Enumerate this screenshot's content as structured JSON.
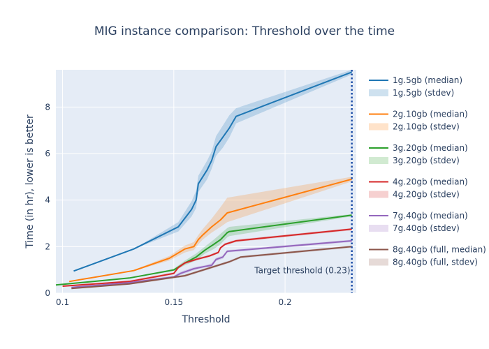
{
  "chart_data": {
    "type": "line",
    "title": "MIG instance comparison: Threshold over the time",
    "xlabel": "Threshold",
    "ylabel": "Time (in hr), lower is better",
    "xlim": [
      0.097,
      0.232
    ],
    "ylim": [
      0,
      9.6
    ],
    "x_ticks": [
      0.1,
      0.15,
      0.2
    ],
    "x_tick_labels": [
      "0.1",
      "0.15",
      "0.2"
    ],
    "y_ticks": [
      0,
      2,
      4,
      6,
      8
    ],
    "y_tick_labels": [
      "0",
      "2",
      "4",
      "6",
      "8"
    ],
    "grid": true,
    "legend_position": "right",
    "plot_background": "#e5ecf6",
    "annotation": {
      "text": "Target threshold (0.23)",
      "x": 0.23
    },
    "series": [
      {
        "name": "1g.5gb (median)",
        "band_name": "1g.5gb (stdev)",
        "color": "#1f77b4",
        "x": [
          0.105,
          0.132,
          0.152,
          0.158,
          0.16,
          0.161,
          0.165,
          0.167,
          0.169,
          0.172,
          0.175,
          0.178,
          0.23
        ],
        "y": [
          0.95,
          1.9,
          2.85,
          3.6,
          4.0,
          4.7,
          5.3,
          5.7,
          6.3,
          6.7,
          7.1,
          7.6,
          9.5
        ],
        "upper": [
          0.95,
          1.9,
          3.05,
          3.95,
          4.4,
          5.05,
          5.7,
          6.1,
          6.75,
          7.2,
          7.65,
          7.95,
          9.6
        ],
        "lower": [
          0.95,
          1.9,
          2.65,
          3.3,
          3.65,
          4.35,
          4.9,
          5.35,
          5.9,
          6.25,
          6.7,
          7.3,
          9.4
        ]
      },
      {
        "name": "2g.10gb (median)",
        "band_name": "2g.10gb (stdev)",
        "color": "#ff7f0e",
        "x": [
          0.103,
          0.132,
          0.148,
          0.155,
          0.159,
          0.161,
          0.163,
          0.167,
          0.171,
          0.174,
          0.23
        ],
        "y": [
          0.5,
          0.97,
          1.5,
          1.9,
          2.0,
          2.3,
          2.5,
          2.85,
          3.15,
          3.45,
          4.9
        ],
        "upper": [
          0.5,
          1.0,
          1.6,
          2.05,
          2.2,
          2.5,
          2.75,
          3.2,
          3.7,
          4.1,
          5.0
        ],
        "lower": [
          0.5,
          0.95,
          1.4,
          1.75,
          1.85,
          2.1,
          2.3,
          2.6,
          2.85,
          3.05,
          4.8
        ]
      },
      {
        "name": "3g.20gb (median)",
        "band_name": "3g.20gb (stdev)",
        "color": "#2ca02c",
        "x": [
          0.097,
          0.13,
          0.15,
          0.155,
          0.16,
          0.164,
          0.168,
          0.171,
          0.174,
          0.175,
          0.23
        ],
        "y": [
          0.35,
          0.65,
          1.0,
          1.3,
          1.55,
          1.85,
          2.1,
          2.3,
          2.6,
          2.65,
          3.35
        ],
        "upper": [
          0.35,
          0.67,
          1.05,
          1.4,
          1.7,
          2.0,
          2.3,
          2.55,
          2.8,
          2.85,
          3.4
        ],
        "lower": [
          0.35,
          0.63,
          0.95,
          1.2,
          1.4,
          1.7,
          1.9,
          2.1,
          2.4,
          2.45,
          3.3
        ]
      },
      {
        "name": "4g.20gb (median)",
        "band_name": "4g.20gb (stdev)",
        "color": "#d62728",
        "x": [
          0.1,
          0.13,
          0.15,
          0.152,
          0.155,
          0.16,
          0.166,
          0.17,
          0.171,
          0.173,
          0.178,
          0.23
        ],
        "y": [
          0.3,
          0.5,
          0.85,
          1.1,
          1.3,
          1.45,
          1.6,
          1.75,
          1.95,
          2.1,
          2.25,
          2.75
        ],
        "upper": [
          0.3,
          0.55,
          0.9,
          1.15,
          1.35,
          1.5,
          1.65,
          1.8,
          2.0,
          2.15,
          2.3,
          2.8
        ],
        "lower": [
          0.3,
          0.45,
          0.8,
          1.05,
          1.25,
          1.4,
          1.55,
          1.7,
          1.9,
          2.05,
          2.2,
          2.7
        ]
      },
      {
        "name": "7g.40gb (median)",
        "band_name": "7g.40gb (stdev)",
        "color": "#9467bd",
        "x": [
          0.104,
          0.13,
          0.15,
          0.153,
          0.159,
          0.164,
          0.167,
          0.169,
          0.172,
          0.174,
          0.23
        ],
        "y": [
          0.25,
          0.45,
          0.7,
          0.85,
          1.05,
          1.15,
          1.2,
          1.45,
          1.55,
          1.8,
          2.25
        ],
        "upper": [
          0.25,
          0.48,
          0.75,
          0.92,
          1.12,
          1.2,
          1.28,
          1.52,
          1.62,
          1.85,
          2.3
        ],
        "lower": [
          0.25,
          0.42,
          0.65,
          0.78,
          0.98,
          1.1,
          1.12,
          1.38,
          1.48,
          1.75,
          2.2
        ]
      },
      {
        "name": "8g.40gb (full, median)",
        "band_name": "8g.40gb (full, stdev)",
        "color": "#8c564b",
        "x": [
          0.104,
          0.13,
          0.155,
          0.165,
          0.17,
          0.175,
          0.18,
          0.23
        ],
        "y": [
          0.2,
          0.4,
          0.75,
          1.05,
          1.2,
          1.35,
          1.55,
          2.0
        ],
        "upper": [
          0.2,
          0.43,
          0.8,
          1.1,
          1.25,
          1.4,
          1.6,
          2.05
        ],
        "lower": [
          0.2,
          0.37,
          0.7,
          1.0,
          1.15,
          1.3,
          1.5,
          1.95
        ]
      }
    ]
  }
}
